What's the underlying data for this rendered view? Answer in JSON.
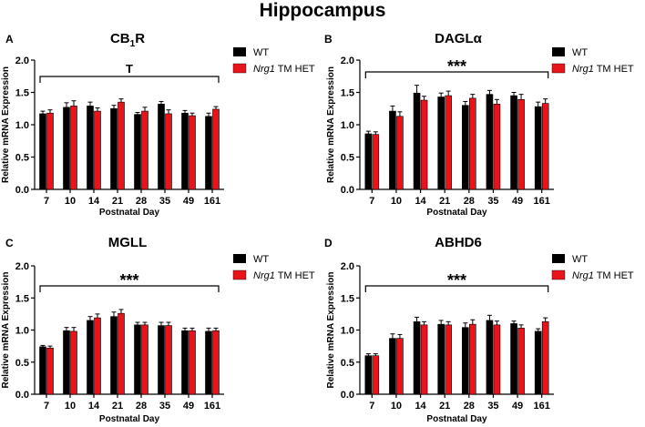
{
  "figure": {
    "title": "Hippocampus"
  },
  "colors": {
    "wt": "#000000",
    "het": "#e8141c"
  },
  "chart_data": [
    {
      "type": "bar",
      "panel_letter": "A",
      "title_main": "CB",
      "title_sub": "1",
      "title_end": "R",
      "xlabel": "Postnatal Day",
      "ylabel": "Relative mRNA Expression",
      "ylim": [
        0,
        2.0
      ],
      "yticks": [
        "0.0",
        "0.5",
        "1.0",
        "1.5",
        "2.0"
      ],
      "categories": [
        "7",
        "10",
        "14",
        "21",
        "28",
        "35",
        "49",
        "161"
      ],
      "significance": "T",
      "legend": {
        "position": "top-right",
        "wt": "WT",
        "het_italic": "Nrg1",
        "het_rest": " TM HET"
      },
      "series": [
        {
          "name": "WT",
          "values": [
            1.17,
            1.27,
            1.29,
            1.25,
            1.16,
            1.32,
            1.18,
            1.13
          ],
          "errors": [
            0.04,
            0.07,
            0.06,
            0.05,
            0.03,
            0.04,
            0.04,
            0.05
          ]
        },
        {
          "name": "Nrg1 TM HET",
          "values": [
            1.18,
            1.29,
            1.21,
            1.35,
            1.21,
            1.17,
            1.14,
            1.24
          ],
          "errors": [
            0.05,
            0.08,
            0.05,
            0.05,
            0.06,
            0.06,
            0.04,
            0.04
          ]
        }
      ]
    },
    {
      "type": "bar",
      "panel_letter": "B",
      "title_main": "DAGLα",
      "title_sub": "",
      "title_end": "",
      "xlabel": "Postnatal Day",
      "ylabel": "Relative mRNA Expression",
      "ylim": [
        0,
        2.0
      ],
      "yticks": [
        "0.0",
        "0.5",
        "1.0",
        "1.5",
        "2.0"
      ],
      "categories": [
        "7",
        "10",
        "14",
        "21",
        "28",
        "35",
        "49",
        "161"
      ],
      "significance": "***",
      "legend": {
        "position": "top-right",
        "wt": "WT",
        "het_italic": "Nrg1",
        "het_rest": " TM HET"
      },
      "series": [
        {
          "name": "WT",
          "values": [
            0.86,
            1.21,
            1.49,
            1.43,
            1.3,
            1.47,
            1.45,
            1.28
          ],
          "errors": [
            0.04,
            0.08,
            0.12,
            0.06,
            0.06,
            0.06,
            0.05,
            0.07
          ]
        },
        {
          "name": "Nrg1 TM HET",
          "values": [
            0.85,
            1.13,
            1.38,
            1.45,
            1.41,
            1.32,
            1.39,
            1.33
          ],
          "errors": [
            0.04,
            0.07,
            0.06,
            0.07,
            0.06,
            0.07,
            0.08,
            0.07
          ]
        }
      ]
    },
    {
      "type": "bar",
      "panel_letter": "C",
      "title_main": "MGLL",
      "title_sub": "",
      "title_end": "",
      "xlabel": "Postnatal Day",
      "ylabel": "Relative mRNA Expression",
      "ylim": [
        0,
        2.0
      ],
      "yticks": [
        "0.0",
        "0.5",
        "1.0",
        "1.5",
        "2.0"
      ],
      "categories": [
        "7",
        "10",
        "14",
        "21",
        "28",
        "35",
        "49",
        "161"
      ],
      "significance": "***",
      "legend": {
        "position": "top-right",
        "wt": "WT",
        "het_italic": "Nrg1",
        "het_rest": " TM HET"
      },
      "series": [
        {
          "name": "WT",
          "values": [
            0.74,
            0.99,
            1.15,
            1.21,
            1.08,
            1.07,
            0.99,
            0.98
          ],
          "errors": [
            0.02,
            0.05,
            0.06,
            0.07,
            0.04,
            0.05,
            0.04,
            0.05
          ]
        },
        {
          "name": "Nrg1 TM HET",
          "values": [
            0.72,
            0.98,
            1.19,
            1.26,
            1.08,
            1.07,
            0.99,
            0.99
          ],
          "errors": [
            0.03,
            0.06,
            0.06,
            0.06,
            0.04,
            0.05,
            0.04,
            0.04
          ]
        }
      ]
    },
    {
      "type": "bar",
      "panel_letter": "D",
      "title_main": "ABHD6",
      "title_sub": "",
      "title_end": "",
      "xlabel": "Postnatal Day",
      "ylabel": "Relative mRNA Expression",
      "ylim": [
        0,
        2.0
      ],
      "yticks": [
        "0.0",
        "0.5",
        "1.0",
        "1.5",
        "2.0"
      ],
      "categories": [
        "7",
        "10",
        "14",
        "21",
        "28",
        "35",
        "49",
        "161"
      ],
      "significance": "***",
      "legend": {
        "position": "top-right",
        "wt": "WT",
        "het_italic": "Nrg1",
        "het_rest": " TM HET"
      },
      "series": [
        {
          "name": "WT",
          "values": [
            0.6,
            0.87,
            1.13,
            1.09,
            1.04,
            1.15,
            1.1,
            0.98
          ],
          "errors": [
            0.03,
            0.07,
            0.07,
            0.06,
            0.07,
            0.08,
            0.04,
            0.04
          ]
        },
        {
          "name": "Nrg1 TM HET",
          "values": [
            0.6,
            0.87,
            1.08,
            1.08,
            1.09,
            1.08,
            1.03,
            1.13
          ],
          "errors": [
            0.03,
            0.06,
            0.05,
            0.05,
            0.07,
            0.06,
            0.05,
            0.06
          ]
        }
      ]
    }
  ]
}
